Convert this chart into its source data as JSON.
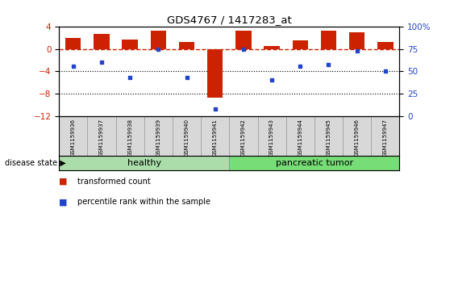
{
  "title": "GDS4767 / 1417283_at",
  "samples": [
    "GSM1159936",
    "GSM1159937",
    "GSM1159938",
    "GSM1159939",
    "GSM1159940",
    "GSM1159941",
    "GSM1159942",
    "GSM1159943",
    "GSM1159944",
    "GSM1159945",
    "GSM1159946",
    "GSM1159947"
  ],
  "red_values": [
    2.0,
    2.6,
    1.7,
    3.3,
    1.3,
    -8.6,
    3.3,
    0.5,
    1.5,
    3.3,
    3.0,
    1.2
  ],
  "blue_values_pct": [
    56,
    60,
    43,
    75,
    43,
    8,
    75,
    41,
    56,
    58,
    73,
    50
  ],
  "ylim_left": [
    -12,
    4
  ],
  "ylim_right": [
    0,
    100
  ],
  "yticks_left": [
    4,
    0,
    -4,
    -8,
    -12
  ],
  "yticks_right": [
    100,
    75,
    50,
    25,
    0
  ],
  "hline_red": 0,
  "hline_black1": -4,
  "hline_black2": -8,
  "group_healthy": [
    0,
    1,
    2,
    3,
    4,
    5
  ],
  "group_tumor": [
    6,
    7,
    8,
    9,
    10,
    11
  ],
  "group_healthy_label": "healthy",
  "group_tumor_label": "pancreatic tumor",
  "disease_state_label": "disease state",
  "legend_red_label": "transformed count",
  "legend_blue_label": "percentile rank within the sample",
  "bar_color_red": "#cc2200",
  "dot_color_blue": "#2244cc",
  "hline_red_color": "#cc2200",
  "hline_black_color": "#000000",
  "group_healthy_color": "#aaddaa",
  "group_tumor_color": "#77dd77",
  "sample_box_color": "#d8d8d8",
  "bar_width": 0.55,
  "figsize": [
    5.63,
    3.63
  ],
  "dpi": 100
}
